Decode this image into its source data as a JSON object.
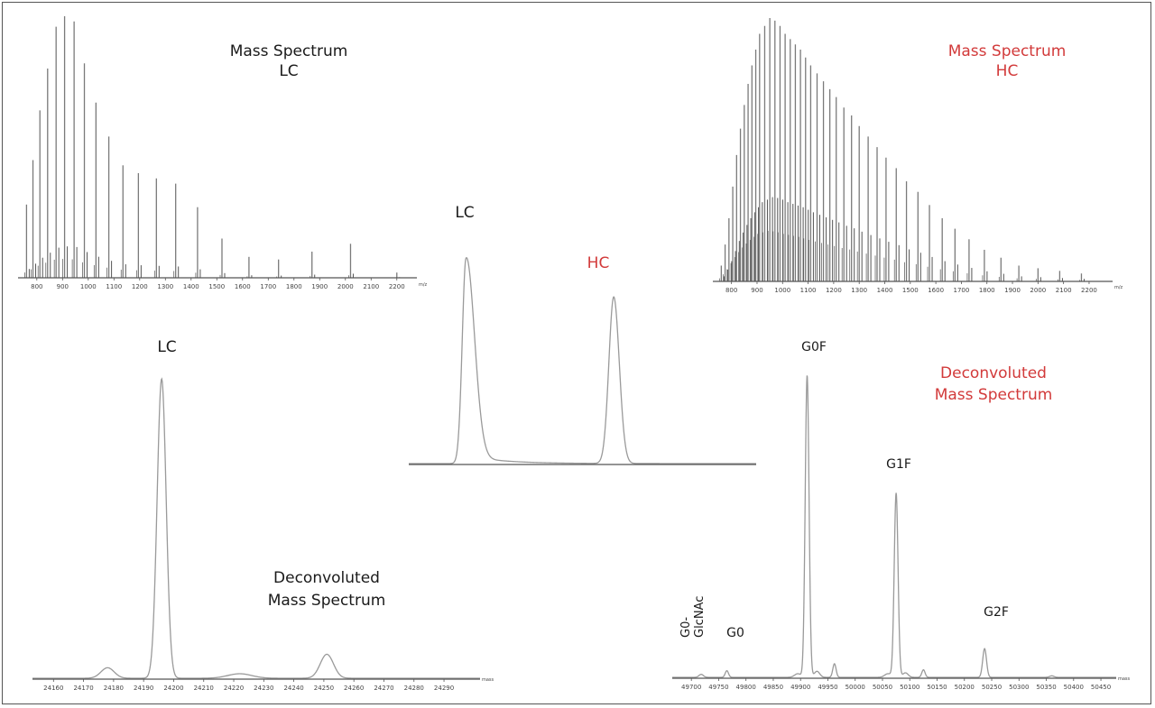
{
  "colors": {
    "black_text": "#1a1a1a",
    "red_text": "#d23a3a",
    "trace": "#9a9a9a",
    "spectrum": "#7a7a7a",
    "axis": "#555555"
  },
  "chart_data": [
    {
      "id": "ms_lc",
      "type": "bar",
      "title_lines": [
        "Mass Spectrum",
        "LC"
      ],
      "x_unit": "m/z",
      "x_ticks": [
        800,
        900,
        1000,
        1100,
        1200,
        1300,
        1400,
        1500,
        1600,
        1700,
        1800,
        1900,
        2000,
        2100,
        2200
      ],
      "xlim": [
        727,
        2278
      ],
      "ylim": [
        0,
        100
      ],
      "peaks": [
        {
          "x": 760,
          "y": 28
        },
        {
          "x": 785,
          "y": 45
        },
        {
          "x": 812,
          "y": 64
        },
        {
          "x": 842,
          "y": 80
        },
        {
          "x": 875,
          "y": 96
        },
        {
          "x": 908,
          "y": 100
        },
        {
          "x": 945,
          "y": 98
        },
        {
          "x": 985,
          "y": 82
        },
        {
          "x": 1030,
          "y": 67
        },
        {
          "x": 1080,
          "y": 54
        },
        {
          "x": 1135,
          "y": 43
        },
        {
          "x": 1195,
          "y": 40
        },
        {
          "x": 1265,
          "y": 38
        },
        {
          "x": 1340,
          "y": 36
        },
        {
          "x": 1425,
          "y": 27
        },
        {
          "x": 1520,
          "y": 15
        },
        {
          "x": 1625,
          "y": 8
        },
        {
          "x": 1740,
          "y": 7
        },
        {
          "x": 1870,
          "y": 10
        },
        {
          "x": 2020,
          "y": 13
        },
        {
          "x": 2200,
          "y": 2
        }
      ]
    },
    {
      "id": "ms_hc",
      "type": "bar",
      "title_lines": [
        "Mass Spectrum",
        "HC"
      ],
      "x_unit": "m/z",
      "x_ticks": [
        800,
        900,
        1000,
        1100,
        1200,
        1300,
        1400,
        1500,
        1600,
        1700,
        1800,
        1900,
        2000,
        2100,
        2200
      ],
      "xlim": [
        727,
        2292
      ],
      "ylim": [
        0,
        100
      ],
      "peaks": [
        {
          "x": 760,
          "y": 6
        },
        {
          "x": 775,
          "y": 14
        },
        {
          "x": 790,
          "y": 24
        },
        {
          "x": 805,
          "y": 36
        },
        {
          "x": 820,
          "y": 48
        },
        {
          "x": 835,
          "y": 58
        },
        {
          "x": 850,
          "y": 67
        },
        {
          "x": 865,
          "y": 75
        },
        {
          "x": 880,
          "y": 82
        },
        {
          "x": 895,
          "y": 88
        },
        {
          "x": 910,
          "y": 94
        },
        {
          "x": 930,
          "y": 97
        },
        {
          "x": 950,
          "y": 100
        },
        {
          "x": 970,
          "y": 99
        },
        {
          "x": 990,
          "y": 97
        },
        {
          "x": 1010,
          "y": 94
        },
        {
          "x": 1030,
          "y": 92
        },
        {
          "x": 1050,
          "y": 90
        },
        {
          "x": 1070,
          "y": 88
        },
        {
          "x": 1090,
          "y": 85
        },
        {
          "x": 1110,
          "y": 82
        },
        {
          "x": 1135,
          "y": 79
        },
        {
          "x": 1160,
          "y": 76
        },
        {
          "x": 1185,
          "y": 73
        },
        {
          "x": 1210,
          "y": 70
        },
        {
          "x": 1240,
          "y": 66
        },
        {
          "x": 1270,
          "y": 63
        },
        {
          "x": 1300,
          "y": 59
        },
        {
          "x": 1335,
          "y": 55
        },
        {
          "x": 1370,
          "y": 51
        },
        {
          "x": 1405,
          "y": 47
        },
        {
          "x": 1445,
          "y": 43
        },
        {
          "x": 1485,
          "y": 38
        },
        {
          "x": 1530,
          "y": 34
        },
        {
          "x": 1575,
          "y": 29
        },
        {
          "x": 1625,
          "y": 24
        },
        {
          "x": 1675,
          "y": 20
        },
        {
          "x": 1730,
          "y": 16
        },
        {
          "x": 1790,
          "y": 12
        },
        {
          "x": 1855,
          "y": 9
        },
        {
          "x": 1925,
          "y": 6
        },
        {
          "x": 2000,
          "y": 5
        },
        {
          "x": 2085,
          "y": 4
        },
        {
          "x": 2170,
          "y": 3
        }
      ]
    },
    {
      "id": "chrom",
      "type": "line",
      "peak_labels": [
        {
          "label": "LC",
          "color_key": "black_text"
        },
        {
          "label": "HC",
          "color_key": "red_text"
        }
      ],
      "xlim": [
        0,
        100
      ],
      "ylim": [
        0,
        100
      ],
      "peaks": [
        {
          "center": 16.5,
          "height": 100,
          "width_left": 1.1,
          "width_right": 2.4,
          "tail": 4
        },
        {
          "center": 59,
          "height": 81,
          "width_left": 1.4,
          "width_right": 1.6,
          "tail": 0
        }
      ]
    },
    {
      "id": "deconv_lc",
      "type": "line",
      "title_lines": [
        "Deconvoluted",
        "Mass Spectrum"
      ],
      "peak_label": "LC",
      "x_unit": "mass",
      "x_ticks": [
        24160,
        24170,
        24180,
        24190,
        24200,
        24210,
        24220,
        24230,
        24240,
        24250,
        24260,
        24270,
        24280,
        24290
      ],
      "xlim": [
        24153,
        24302
      ],
      "ylim": [
        0,
        100
      ],
      "peaks": [
        {
          "x": 24178,
          "y": 3.5,
          "w": 2.2
        },
        {
          "x": 24196,
          "y": 100,
          "w": 1.5
        },
        {
          "x": 24222,
          "y": 1.5,
          "w": 4
        },
        {
          "x": 24251,
          "y": 8,
          "w": 2.2
        }
      ]
    },
    {
      "id": "deconv_hc",
      "type": "line",
      "title_lines": [
        "Deconvoluted",
        "Mass Spectrum"
      ],
      "x_unit": "mass",
      "x_ticks": [
        49700,
        49750,
        49800,
        49850,
        49900,
        49950,
        50000,
        50050,
        50100,
        50150,
        50200,
        50250,
        50300,
        50350,
        50400,
        50450
      ],
      "xlim": [
        49665,
        50478
      ],
      "ylim": [
        0,
        100
      ],
      "peak_labels": [
        {
          "label_lines": [
            "G0-",
            "GlcNAc"
          ],
          "vertical": true
        },
        {
          "label": "G0"
        },
        {
          "label": "G0F"
        },
        {
          "label": "G1F"
        },
        {
          "label": "G2F"
        }
      ],
      "peaks": [
        {
          "x": 49718,
          "y": 1,
          "w": 4
        },
        {
          "x": 49765,
          "y": 2.2,
          "w": 3
        },
        {
          "x": 49895,
          "y": 1.2,
          "w": 6
        },
        {
          "x": 49912,
          "y": 100,
          "w": 3.5
        },
        {
          "x": 49930,
          "y": 2,
          "w": 5
        },
        {
          "x": 49962,
          "y": 4.5,
          "w": 3
        },
        {
          "x": 50060,
          "y": 1.2,
          "w": 6
        },
        {
          "x": 50075,
          "y": 61,
          "w": 3.5
        },
        {
          "x": 50092,
          "y": 1.5,
          "w": 5
        },
        {
          "x": 50125,
          "y": 2.5,
          "w": 3
        },
        {
          "x": 50237,
          "y": 9.5,
          "w": 3.5
        },
        {
          "x": 50360,
          "y": 0.5,
          "w": 4
        }
      ]
    }
  ]
}
